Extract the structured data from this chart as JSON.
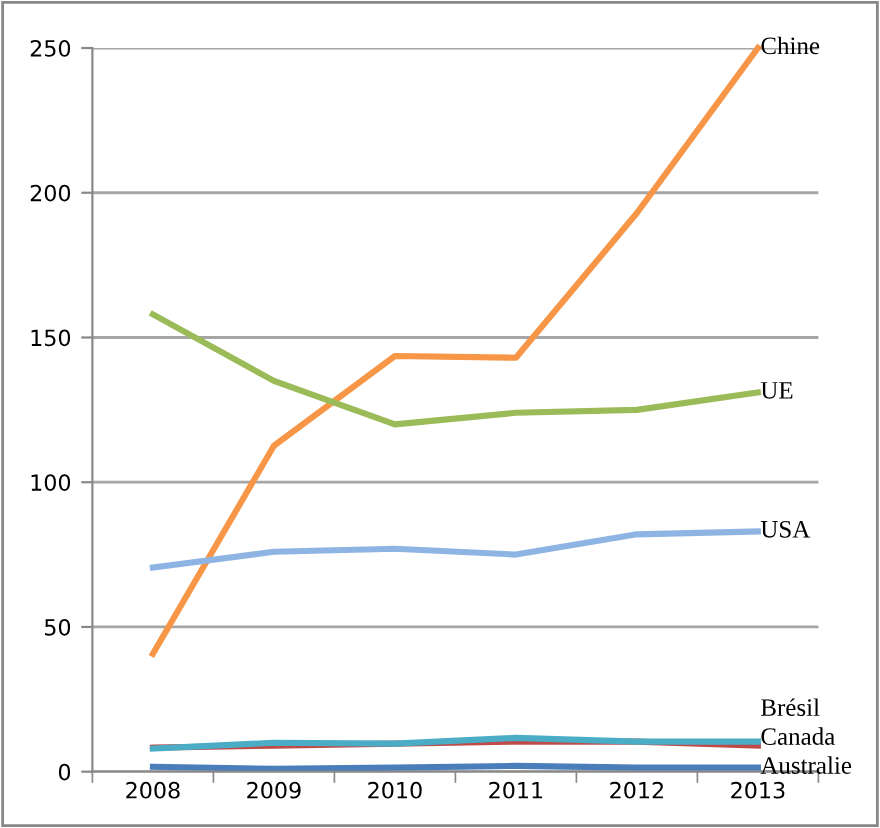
{
  "chart_data": {
    "type": "line",
    "categories": [
      "2008",
      "2009",
      "2010",
      "2011",
      "2012",
      "2013"
    ],
    "series": [
      {
        "name": "Australie",
        "color": "#4a7ebb",
        "values": [
          1.7,
          1,
          1.4,
          2,
          1.4,
          1.4
        ]
      },
      {
        "name": "Canada",
        "color": "#be4b48",
        "values": [
          8.3,
          9,
          9.7,
          10.4,
          10.4,
          9
        ]
      },
      {
        "name": "Brésil",
        "color": "#4bacc6",
        "values": [
          8,
          10,
          9.7,
          11.7,
          10.4,
          10.4
        ]
      },
      {
        "name": "Chine",
        "color": "#f79646",
        "values": [
          40.7,
          112.6,
          143.6,
          143,
          193,
          250
        ]
      },
      {
        "name": "UE",
        "color": "#9bbb59",
        "values": [
          158,
          135,
          120,
          124,
          125,
          131
        ]
      },
      {
        "name": "USA",
        "color": "#8eb4e3",
        "values": [
          70.5,
          76,
          77,
          75,
          82,
          83
        ]
      }
    ],
    "ylim": [
      0,
      250
    ],
    "yticks": [
      0,
      50,
      100,
      150,
      200,
      250
    ],
    "grid": "y",
    "legend": false,
    "marker": "none",
    "line_style": "solid"
  }
}
